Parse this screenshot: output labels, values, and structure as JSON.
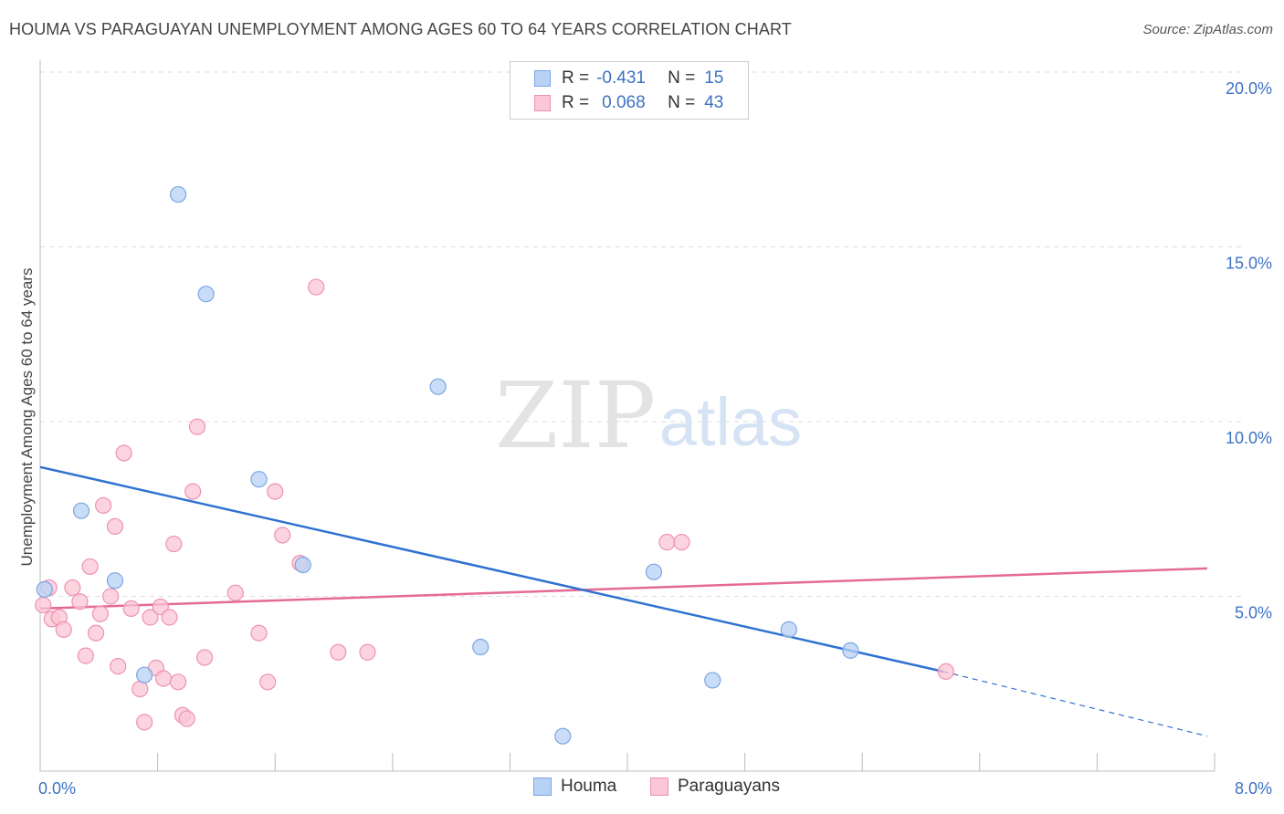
{
  "title": "HOUMA VS PARAGUAYAN UNEMPLOYMENT AMONG AGES 60 TO 64 YEARS CORRELATION CHART",
  "source": "Source: ZipAtlas.com",
  "watermark": {
    "zip": "ZIP",
    "atlas": "atlas"
  },
  "legend": {
    "r_label": "R =",
    "n_label": "N =",
    "rows": [
      {
        "r": "-0.431",
        "n": "15",
        "fill": "#b8d2f5",
        "stroke": "#7aa6e0"
      },
      {
        "r": "0.068",
        "n": "43",
        "fill": "#fbc6d6",
        "stroke": "#ee92b0"
      }
    ]
  },
  "bottom_legend": [
    "Houma",
    "Paraguayans"
  ],
  "chart_data": {
    "type": "scatter",
    "title": "HOUMA VS PARAGUAYAN UNEMPLOYMENT AMONG AGES 60 TO 64 YEARS CORRELATION CHART",
    "xlabel": "",
    "ylabel": "Unemployment Among Ages 60 to 64 years",
    "xlim": [
      0,
      8
    ],
    "ylim": [
      0,
      20
    ],
    "x_tick_labels": [
      {
        "value": 0,
        "label": "0.0%"
      },
      {
        "value": 8,
        "label": "8.0%"
      }
    ],
    "y_tick_labels": [
      {
        "value": 5,
        "label": "5.0%"
      },
      {
        "value": 10,
        "label": "10.0%"
      },
      {
        "value": 15,
        "label": "15.0%"
      },
      {
        "value": 20,
        "label": "20.0%"
      }
    ],
    "grid": true,
    "legend_position": "top-center",
    "series": [
      {
        "name": "Houma",
        "color": "#7aa6e0",
        "fill": "#b8d2f5",
        "points": [
          [
            0.03,
            5.2
          ],
          [
            0.28,
            7.45
          ],
          [
            0.51,
            5.45
          ],
          [
            0.71,
            2.75
          ],
          [
            0.94,
            16.5
          ],
          [
            1.13,
            13.65
          ],
          [
            1.49,
            8.35
          ],
          [
            1.79,
            5.9
          ],
          [
            2.71,
            11.0
          ],
          [
            3.0,
            3.55
          ],
          [
            3.56,
            1.0
          ],
          [
            4.18,
            5.7
          ],
          [
            4.58,
            2.6
          ],
          [
            5.1,
            4.05
          ],
          [
            5.52,
            3.45
          ]
        ],
        "trend": {
          "x0": 0.0,
          "y0": 8.7,
          "x1": 6.15,
          "y1": 2.85,
          "dash_to_x": 7.95,
          "dash_to_y": 1.0
        }
      },
      {
        "name": "Paraguayans",
        "color": "#ee92b0",
        "fill": "#fbc6d6",
        "points": [
          [
            0.02,
            4.75
          ],
          [
            0.06,
            5.25
          ],
          [
            0.08,
            4.35
          ],
          [
            0.13,
            4.4
          ],
          [
            0.16,
            4.05
          ],
          [
            0.22,
            5.25
          ],
          [
            0.27,
            4.85
          ],
          [
            0.31,
            3.3
          ],
          [
            0.34,
            5.85
          ],
          [
            0.38,
            3.95
          ],
          [
            0.41,
            4.5
          ],
          [
            0.43,
            7.6
          ],
          [
            0.48,
            5.0
          ],
          [
            0.51,
            7.0
          ],
          [
            0.53,
            3.0
          ],
          [
            0.57,
            9.1
          ],
          [
            0.62,
            4.65
          ],
          [
            0.68,
            2.35
          ],
          [
            0.71,
            1.4
          ],
          [
            0.75,
            4.4
          ],
          [
            0.79,
            2.95
          ],
          [
            0.82,
            4.7
          ],
          [
            0.84,
            2.65
          ],
          [
            0.88,
            4.4
          ],
          [
            0.91,
            6.5
          ],
          [
            0.94,
            2.55
          ],
          [
            0.97,
            1.6
          ],
          [
            1.0,
            1.5
          ],
          [
            1.04,
            8.0
          ],
          [
            1.07,
            9.85
          ],
          [
            1.12,
            3.25
          ],
          [
            1.33,
            5.1
          ],
          [
            1.49,
            3.95
          ],
          [
            1.55,
            2.55
          ],
          [
            1.6,
            8.0
          ],
          [
            1.65,
            6.75
          ],
          [
            1.88,
            13.85
          ],
          [
            2.03,
            3.4
          ],
          [
            2.23,
            3.4
          ],
          [
            4.27,
            6.55
          ],
          [
            4.37,
            6.55
          ],
          [
            6.17,
            2.85
          ],
          [
            1.77,
            5.95
          ]
        ],
        "trend": {
          "x0": 0.0,
          "y0": 4.65,
          "x1": 7.95,
          "y1": 5.8
        }
      }
    ]
  }
}
